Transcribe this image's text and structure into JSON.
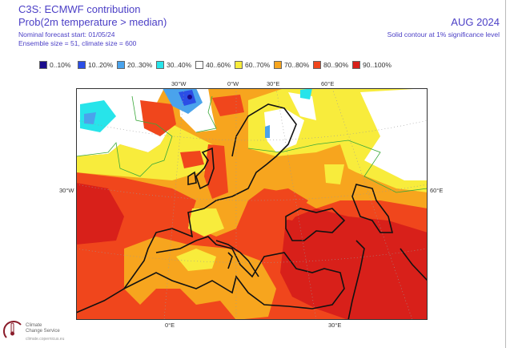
{
  "header": {
    "title": "C3S: ECMWF contribution",
    "subtitle": "Prob(2m temperature > median)",
    "forecast_start": "Nominal forecast start: 01/05/24",
    "ensemble": "Ensemble size = 51, climate size = 600",
    "period": "AUG 2024",
    "contour_note": "Solid contour at 1% significance level"
  },
  "legend": [
    {
      "label": "0..10%",
      "color": "#1a0c8c"
    },
    {
      "label": "10..20%",
      "color": "#2b4ee6"
    },
    {
      "label": "20..30%",
      "color": "#4aa3ec"
    },
    {
      "label": "30..40%",
      "color": "#27e4ea"
    },
    {
      "label": "40..60%",
      "color": "#ffffff"
    },
    {
      "label": "60..70%",
      "color": "#f8ec3c"
    },
    {
      "label": "70..80%",
      "color": "#f7a51e"
    },
    {
      "label": "80..90%",
      "color": "#f0461c"
    },
    {
      "label": "90..100%",
      "color": "#d8201a"
    }
  ],
  "grid_labels": {
    "top": [
      "30°W",
      "0°W",
      "30°E",
      "60°E"
    ],
    "left": "30°W",
    "right": "60°E",
    "bottom": [
      "0°E",
      "30°E"
    ]
  },
  "logo": {
    "name_line1": "Climate",
    "name_line2": "Change Service",
    "url": "climate.copernicus.eu"
  }
}
